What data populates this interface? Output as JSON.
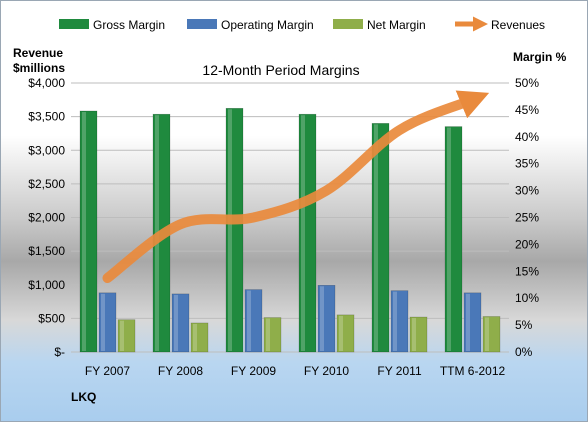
{
  "colors": {
    "gross": "#1f8a3e",
    "operating": "#4a78b8",
    "net": "#8fae4a",
    "revenue": "#e98a3c"
  },
  "chart_data": {
    "type": "bar",
    "title": "12-Month Period Margins",
    "left_axis_title_line1": "Revenue",
    "left_axis_title_line2": "$millions",
    "right_axis_title": "Margin %",
    "footer_label": "LKQ",
    "categories": [
      "FY 2007",
      "FY 2008",
      "FY 2009",
      "FY 2010",
      "FY 2011",
      "TTM 6-2012"
    ],
    "series": [
      {
        "name": "Gross Margin",
        "axis": "right",
        "kind": "bar",
        "values": [
          44.8,
          44.2,
          45.3,
          44.2,
          42.5,
          41.9
        ]
      },
      {
        "name": "Operating Margin",
        "axis": "right",
        "kind": "bar",
        "values": [
          11.0,
          10.8,
          11.6,
          12.4,
          11.4,
          11.0
        ]
      },
      {
        "name": "Net Margin",
        "axis": "right",
        "kind": "bar",
        "values": [
          6.0,
          5.4,
          6.4,
          6.9,
          6.5,
          6.6
        ]
      },
      {
        "name": "Revenues",
        "axis": "left",
        "kind": "line",
        "values": [
          1100,
          1900,
          2000,
          2400,
          3300,
          3750
        ]
      }
    ],
    "left_axis": {
      "ylim": [
        0,
        4000
      ],
      "ticks": [
        "$-",
        "$500",
        "$1,000",
        "$1,500",
        "$2,000",
        "$2,500",
        "$3,000",
        "$3,500",
        "$4,000"
      ]
    },
    "right_axis": {
      "ylim": [
        0,
        50
      ],
      "ticks": [
        "0%",
        "5%",
        "10%",
        "15%",
        "20%",
        "25%",
        "30%",
        "35%",
        "40%",
        "45%",
        "50%"
      ]
    },
    "legend_position": "top"
  }
}
